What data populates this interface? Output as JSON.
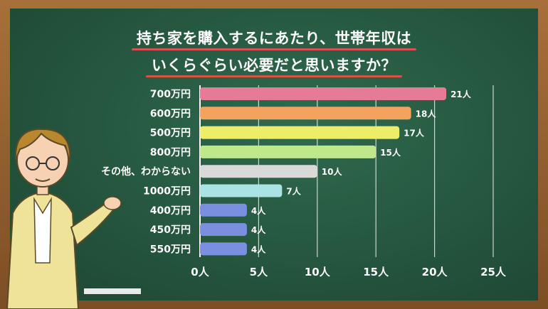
{
  "title_line1": "持ち家を購入するにあたり、世帯年収は",
  "title_line2": "いくらぐらい必要だと思いますか？",
  "chart_data": {
    "type": "bar",
    "orientation": "horizontal",
    "categories": [
      "700万円",
      "600万円",
      "500万円",
      "800万円",
      "その他、わからない",
      "1000万円",
      "400万円",
      "450万円",
      "550万円"
    ],
    "values": [
      21,
      18,
      17,
      15,
      10,
      7,
      4,
      4,
      4
    ],
    "value_suffix": "人",
    "colors": [
      "#e57b95",
      "#f3a35d",
      "#eded6a",
      "#bfe88b",
      "#d9d9d9",
      "#a9e3e4",
      "#7b8fe0",
      "#7b8fe0",
      "#7b8fe0"
    ],
    "x_ticks": [
      "0人",
      "5人",
      "10人",
      "15人",
      "20人",
      "25人"
    ],
    "xlim": [
      0,
      25
    ],
    "grid": true
  }
}
